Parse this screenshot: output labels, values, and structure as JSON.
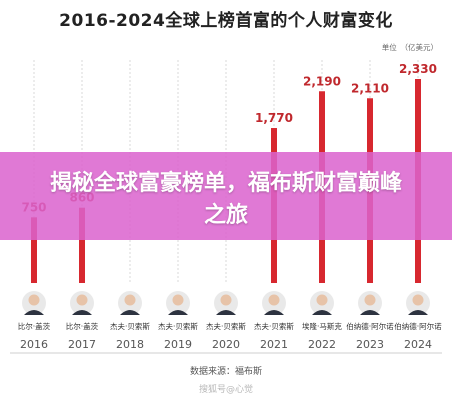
{
  "title": "2016-2024全球上榜首富的个人财富变化",
  "unit": "单位　（亿美元）",
  "banner": "揭秘全球富豪榜单，福布斯财富巅峰之旅",
  "source": "数据来源：福布斯",
  "watermark": "搜狐号@心觉",
  "colors": {
    "bar": "#d7282f",
    "value_label": "#c0282d",
    "banner": "#db63ce"
  },
  "people": [
    "比尔·盖茨",
    "比尔·盖茨",
    "杰夫·贝索斯",
    "杰夫·贝索斯",
    "杰夫·贝索斯",
    "杰夫·贝索斯",
    "埃隆·马斯克",
    "伯纳德·阿尔诺",
    "伯纳德·阿尔诺"
  ],
  "chart_data": {
    "type": "bar",
    "title": "2016-2024全球上榜首富的个人财富变化",
    "ylabel": "单位　（亿美元）",
    "categories": [
      "2016",
      "2017",
      "2018",
      "2019",
      "2020",
      "2021",
      "2022",
      "2023",
      "2024"
    ],
    "values": [
      750,
      860,
      null,
      null,
      null,
      1770,
      2190,
      2110,
      2330
    ],
    "value_labels": [
      "750",
      "860",
      "",
      "",
      "",
      "1,770",
      "2,190",
      "2,110",
      "2,330"
    ],
    "ylim": [
      0,
      2500
    ],
    "grid": true
  }
}
